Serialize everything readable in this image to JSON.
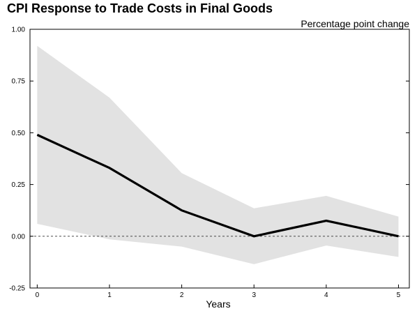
{
  "chart_data": {
    "type": "line",
    "title": "CPI Response to Trade Costs in Final Goods",
    "unit_label": "Percentage point change",
    "xlabel": "Years",
    "ylabel": "",
    "x": [
      0,
      1,
      2,
      3,
      4,
      5
    ],
    "x_ticks": [
      "0",
      "1",
      "2",
      "3",
      "4",
      "5"
    ],
    "y_ticks": [
      "1.00",
      "0.75",
      "0.50",
      "0.25",
      "0.00",
      "-0.25"
    ],
    "y_tick_values": [
      1.0,
      0.75,
      0.5,
      0.25,
      0.0,
      -0.25
    ],
    "xlim": [
      -0.1,
      5.15
    ],
    "ylim": [
      -0.25,
      1.0
    ],
    "series": [
      {
        "values": [
          0.49,
          0.33,
          0.125,
          0.0,
          0.075,
          0.0
        ]
      }
    ],
    "band": {
      "upper": [
        0.92,
        0.67,
        0.305,
        0.135,
        0.195,
        0.095
      ],
      "lower": [
        0.06,
        -0.015,
        -0.05,
        -0.135,
        -0.045,
        -0.1
      ]
    },
    "reference_line": 0.0,
    "grid": false,
    "legend": "none",
    "colors": {
      "line": "#000000",
      "band": "#e2e2e2",
      "axis": "#000000"
    }
  }
}
